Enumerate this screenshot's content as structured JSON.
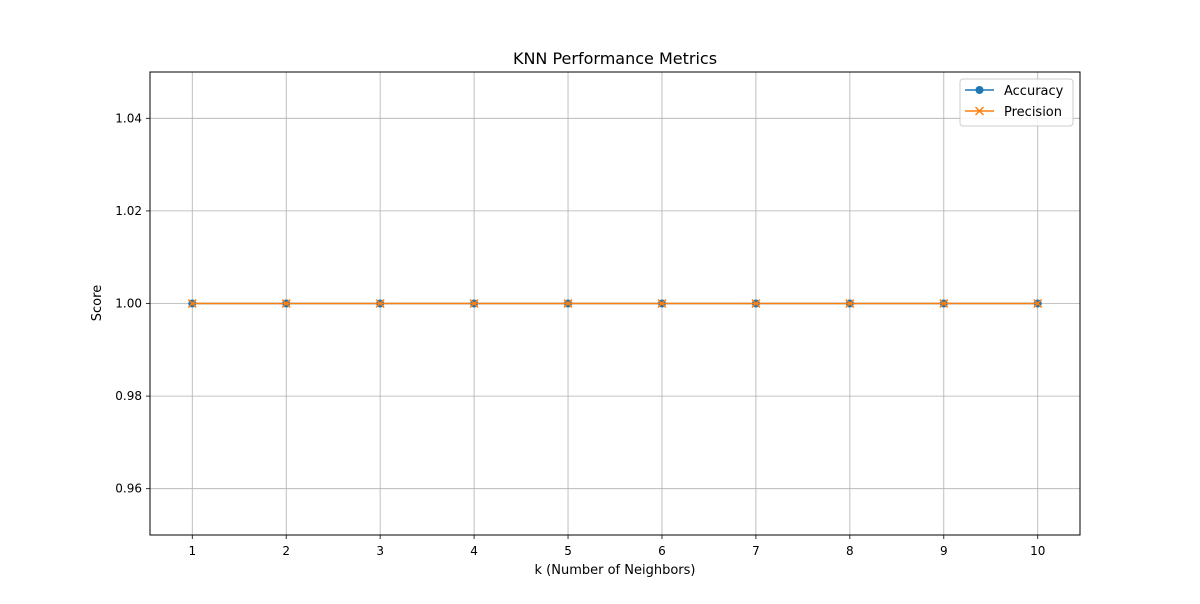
{
  "chart_data": {
    "type": "line",
    "title": "KNN Performance Metrics",
    "xlabel": "k (Number of Neighbors)",
    "ylabel": "Score",
    "x": [
      1,
      2,
      3,
      4,
      5,
      6,
      7,
      8,
      9,
      10
    ],
    "x_ticks": [
      "1",
      "2",
      "3",
      "4",
      "5",
      "6",
      "7",
      "8",
      "9",
      "10"
    ],
    "xlim": [
      0.55,
      10.45
    ],
    "ylim": [
      0.95,
      1.05
    ],
    "y_ticks": [
      "0.96",
      "0.98",
      "1.00",
      "1.02",
      "1.04"
    ],
    "grid": true,
    "legend_position": "top-right",
    "series": [
      {
        "name": "Accuracy",
        "values": [
          1,
          1,
          1,
          1,
          1,
          1,
          1,
          1,
          1,
          1
        ],
        "color": "#1f77b4",
        "marker": "circle"
      },
      {
        "name": "Precision",
        "values": [
          1,
          1,
          1,
          1,
          1,
          1,
          1,
          1,
          1,
          1
        ],
        "color": "#ff7f0e",
        "marker": "x"
      }
    ]
  }
}
